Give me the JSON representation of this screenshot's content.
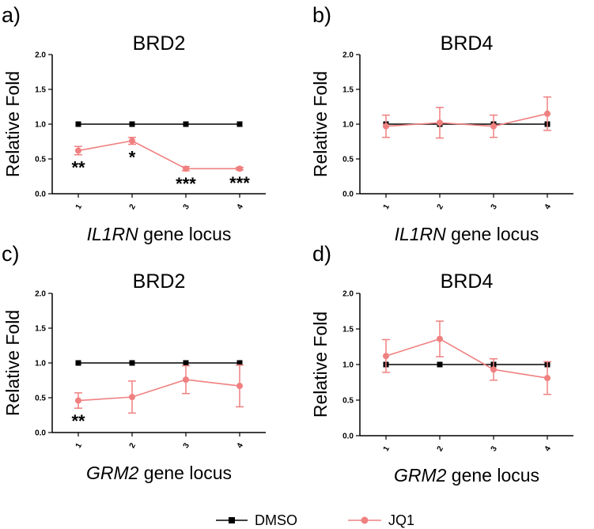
{
  "legend": {
    "dmso_label": "DMSO",
    "jq1_label": "JQ1"
  },
  "colors": {
    "dmso": "#000000",
    "jq1": "#f08080"
  },
  "chart_data": [
    {
      "panel": "a)",
      "type": "line",
      "title": "BRD2",
      "ylabel": "Relative Fold",
      "xlabel_italic": "IL1RN",
      "xlabel_rest": " gene locus",
      "categories": [
        "1",
        "2",
        "3",
        "4"
      ],
      "ylim": [
        0,
        2.0
      ],
      "yticks": [
        "0.0",
        "0.5",
        "1.0",
        "1.5",
        "2.0"
      ],
      "series": [
        {
          "name": "DMSO",
          "values": [
            1.0,
            1.0,
            1.0,
            1.0
          ],
          "errors": [
            0,
            0,
            0,
            0
          ]
        },
        {
          "name": "JQ1",
          "values": [
            0.62,
            0.76,
            0.36,
            0.36
          ],
          "errors": [
            0.06,
            0.05,
            0.03,
            0.02
          ]
        }
      ],
      "annotations": [
        "**",
        "*",
        "***",
        "***"
      ]
    },
    {
      "panel": "b)",
      "type": "line",
      "title": "BRD4",
      "ylabel": "Relative Fold",
      "xlabel_italic": "IL1RN",
      "xlabel_rest": " gene locus",
      "categories": [
        "1",
        "2",
        "3",
        "4"
      ],
      "ylim": [
        0,
        2.0
      ],
      "yticks": [
        "0.0",
        "0.5",
        "1.0",
        "1.5",
        "2.0"
      ],
      "series": [
        {
          "name": "DMSO",
          "values": [
            1.0,
            1.0,
            1.0,
            1.0
          ],
          "errors": [
            0,
            0,
            0,
            0
          ]
        },
        {
          "name": "JQ1",
          "values": [
            0.97,
            1.02,
            0.97,
            1.15
          ],
          "errors": [
            0.16,
            0.22,
            0.16,
            0.24
          ]
        }
      ],
      "annotations": [
        "",
        "",
        "",
        ""
      ]
    },
    {
      "panel": "c)",
      "type": "line",
      "title": "BRD2",
      "ylabel": "Relative Fold",
      "xlabel_italic": "GRM2",
      "xlabel_rest": " gene locus",
      "categories": [
        "1",
        "2",
        "3",
        "4"
      ],
      "ylim": [
        0,
        2.0
      ],
      "yticks": [
        "0.0",
        "0.5",
        "1.0",
        "1.5",
        "2.0"
      ],
      "series": [
        {
          "name": "DMSO",
          "values": [
            1.0,
            1.0,
            1.0,
            1.0
          ],
          "errors": [
            0,
            0,
            0,
            0
          ]
        },
        {
          "name": "JQ1",
          "values": [
            0.46,
            0.51,
            0.76,
            0.67
          ],
          "errors": [
            0.11,
            0.23,
            0.2,
            0.3
          ]
        }
      ],
      "annotations": [
        "**",
        "",
        "",
        ""
      ]
    },
    {
      "panel": "d)",
      "type": "line",
      "title": "BRD4",
      "ylabel": "Relative Fold",
      "xlabel_italic": "GRM2",
      "xlabel_rest": " gene locus",
      "categories": [
        "1",
        "2",
        "3",
        "4"
      ],
      "ylim": [
        0,
        2.0
      ],
      "yticks": [
        "0.0",
        "0.5",
        "1.0",
        "1.5",
        "2.0"
      ],
      "series": [
        {
          "name": "DMSO",
          "values": [
            1.0,
            1.0,
            1.0,
            1.0
          ],
          "errors": [
            0,
            0,
            0,
            0
          ]
        },
        {
          "name": "JQ1",
          "values": [
            1.12,
            1.36,
            0.93,
            0.81
          ],
          "errors": [
            0.23,
            0.25,
            0.15,
            0.23
          ]
        }
      ],
      "annotations": [
        "",
        "",
        "",
        ""
      ]
    }
  ]
}
